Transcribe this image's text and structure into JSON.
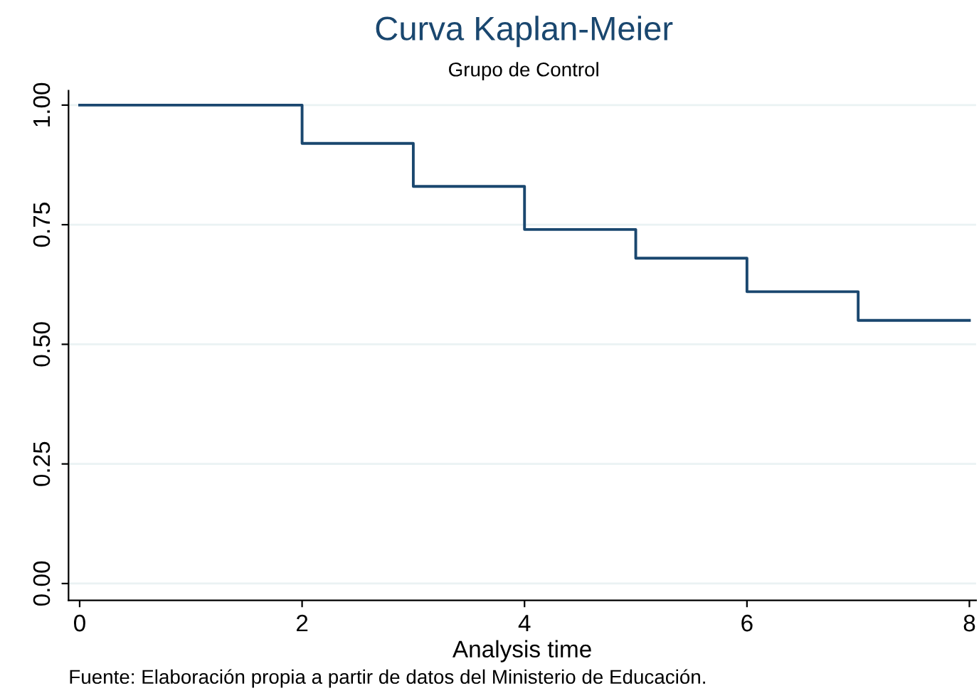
{
  "chart_data": {
    "type": "step",
    "title": "Curva Kaplan-Meier",
    "subtitle": "Grupo de Control",
    "xlabel": "Analysis time",
    "x": [
      0,
      2,
      3,
      4,
      5,
      6,
      7,
      8
    ],
    "series": [
      {
        "color": "#1a476f",
        "values": [
          1.0,
          0.92,
          0.83,
          0.74,
          0.68,
          0.61,
          0.55,
          0.55
        ]
      }
    ],
    "xlim": [
      -0.1,
      8.06
    ],
    "xticks": [
      0,
      2,
      4,
      6,
      8
    ],
    "ylim": [
      -0.035,
      1.03
    ],
    "yticks": [
      {
        "value": 0,
        "label": "0.00"
      },
      {
        "value": 0.25,
        "label": "0.25"
      },
      {
        "value": 0.5,
        "label": "0.50"
      },
      {
        "value": 0.75,
        "label": "0.75"
      },
      {
        "value": 1,
        "label": "1.00"
      }
    ],
    "grid": "y",
    "legend": false,
    "annotations": [
      "Fuente: Elaboración propia a partir de datos del Ministerio de Educación."
    ]
  }
}
